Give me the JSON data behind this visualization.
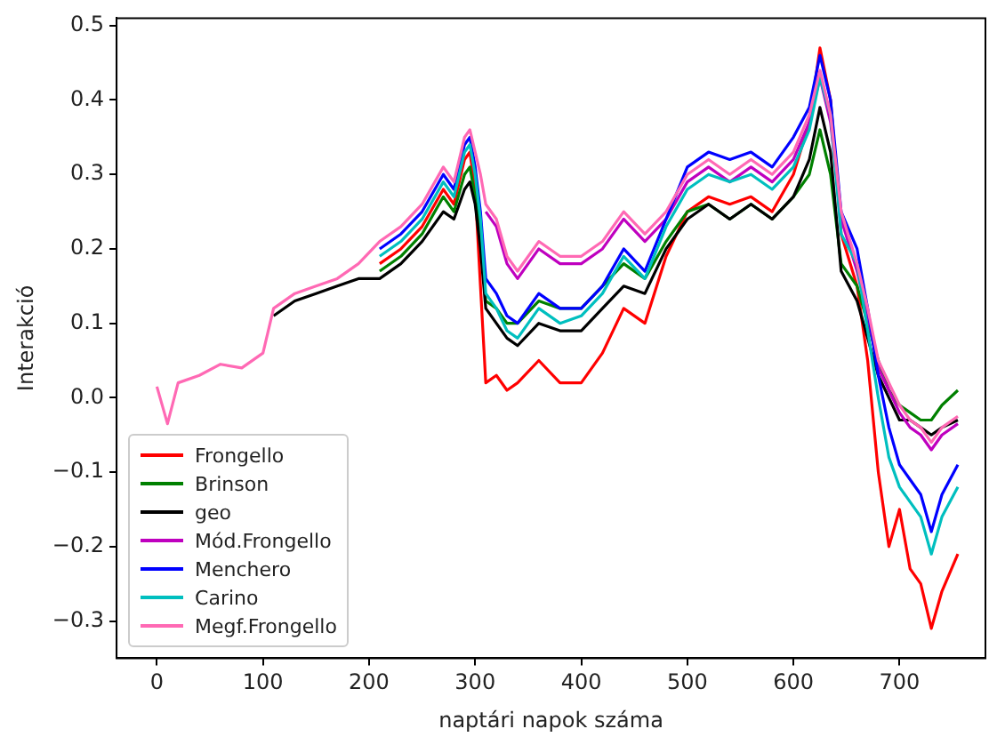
{
  "chart_data": {
    "type": "line",
    "xlabel": "naptári napok száma",
    "ylabel": "Interakció",
    "x": [
      0,
      10,
      20,
      40,
      60,
      80,
      100,
      110,
      130,
      150,
      170,
      190,
      210,
      230,
      250,
      270,
      280,
      290,
      295,
      300,
      305,
      310,
      320,
      330,
      340,
      360,
      380,
      400,
      420,
      440,
      460,
      480,
      500,
      520,
      540,
      560,
      580,
      600,
      615,
      625,
      635,
      645,
      660,
      670,
      680,
      690,
      700,
      710,
      720,
      730,
      740,
      755
    ],
    "xlim": [
      -38,
      781
    ],
    "xticks": [
      0,
      100,
      200,
      300,
      400,
      500,
      600,
      700
    ],
    "ylim": [
      -0.35,
      0.51
    ],
    "yticks": [
      {
        "value": -0.3,
        "label": "−0.3"
      },
      {
        "value": -0.2,
        "label": "−0.2"
      },
      {
        "value": -0.1,
        "label": "−0.1"
      },
      {
        "value": 0,
        "label": "0.0"
      },
      {
        "value": 0.1,
        "label": "0.1"
      },
      {
        "value": 0.2,
        "label": "0.2"
      },
      {
        "value": 0.3,
        "label": "0.3"
      },
      {
        "value": 0.4,
        "label": "0.4"
      },
      {
        "value": 0.5,
        "label": "0.5"
      }
    ],
    "grid": false,
    "legend": "lower left",
    "marker": "none",
    "line_style": "solid",
    "series": [
      {
        "name": "Frongello",
        "color": "#ff0000",
        "values": [
          null,
          null,
          null,
          null,
          null,
          null,
          null,
          null,
          null,
          null,
          null,
          null,
          0.18,
          0.2,
          0.23,
          0.28,
          0.26,
          0.32,
          0.33,
          0.28,
          0.15,
          0.02,
          0.03,
          0.01,
          0.02,
          0.05,
          0.02,
          0.02,
          0.06,
          0.12,
          0.1,
          0.19,
          0.25,
          0.27,
          0.26,
          0.27,
          0.25,
          0.3,
          0.37,
          0.47,
          0.4,
          0.22,
          0.15,
          0.05,
          -0.1,
          -0.2,
          -0.15,
          -0.23,
          -0.25,
          -0.31,
          -0.26,
          -0.21
        ]
      },
      {
        "name": "Brinson",
        "color": "#008000",
        "values": [
          null,
          null,
          null,
          null,
          null,
          null,
          null,
          null,
          null,
          null,
          null,
          null,
          0.17,
          0.19,
          0.22,
          0.27,
          0.25,
          0.3,
          0.31,
          0.27,
          0.22,
          0.13,
          0.12,
          0.1,
          0.1,
          0.13,
          0.12,
          0.12,
          0.15,
          0.18,
          0.16,
          0.21,
          0.25,
          0.26,
          0.24,
          0.26,
          0.24,
          0.27,
          0.3,
          0.36,
          0.3,
          0.18,
          0.15,
          0.1,
          0.05,
          0.01,
          -0.01,
          -0.02,
          -0.03,
          -0.03,
          -0.01,
          0.01
        ]
      },
      {
        "name": "geo",
        "color": "#000000",
        "values": [
          null,
          null,
          null,
          null,
          null,
          null,
          null,
          0.11,
          0.13,
          0.14,
          0.15,
          0.16,
          0.16,
          0.18,
          0.21,
          0.25,
          0.24,
          0.28,
          0.29,
          0.26,
          0.2,
          0.12,
          0.1,
          0.08,
          0.07,
          0.1,
          0.09,
          0.09,
          0.12,
          0.15,
          0.14,
          0.2,
          0.24,
          0.26,
          0.24,
          0.26,
          0.24,
          0.27,
          0.32,
          0.39,
          0.33,
          0.17,
          0.13,
          0.08,
          0.03,
          0.0,
          -0.03,
          -0.03,
          -0.04,
          -0.05,
          -0.04,
          -0.03
        ]
      },
      {
        "name": "Mód.Frongello",
        "color": "#bf00bf",
        "values": [
          null,
          null,
          null,
          null,
          null,
          null,
          null,
          null,
          null,
          null,
          null,
          null,
          null,
          null,
          null,
          null,
          null,
          null,
          null,
          null,
          null,
          0.25,
          0.23,
          0.18,
          0.16,
          0.2,
          0.18,
          0.18,
          0.2,
          0.24,
          0.21,
          0.24,
          0.29,
          0.31,
          0.29,
          0.31,
          0.29,
          0.32,
          0.37,
          0.43,
          0.37,
          0.24,
          0.17,
          0.11,
          0.04,
          0.01,
          -0.02,
          -0.04,
          -0.05,
          -0.07,
          -0.05,
          -0.035
        ]
      },
      {
        "name": "Menchero",
        "color": "#0000ff",
        "values": [
          null,
          null,
          null,
          null,
          null,
          null,
          null,
          null,
          null,
          null,
          null,
          null,
          0.2,
          0.22,
          0.25,
          0.3,
          0.28,
          0.34,
          0.35,
          0.31,
          0.25,
          0.16,
          0.14,
          0.11,
          0.1,
          0.14,
          0.12,
          0.12,
          0.15,
          0.2,
          0.17,
          0.24,
          0.31,
          0.33,
          0.32,
          0.33,
          0.31,
          0.35,
          0.39,
          0.46,
          0.4,
          0.25,
          0.2,
          0.12,
          0.03,
          -0.04,
          -0.09,
          -0.11,
          -0.13,
          -0.18,
          -0.13,
          -0.09
        ]
      },
      {
        "name": "Carino",
        "color": "#00bfbf",
        "values": [
          null,
          null,
          null,
          null,
          null,
          null,
          null,
          null,
          null,
          null,
          null,
          null,
          0.19,
          0.21,
          0.24,
          0.29,
          0.27,
          0.33,
          0.34,
          0.3,
          0.24,
          0.14,
          0.12,
          0.09,
          0.08,
          0.12,
          0.1,
          0.11,
          0.14,
          0.19,
          0.16,
          0.23,
          0.28,
          0.3,
          0.29,
          0.3,
          0.28,
          0.31,
          0.36,
          0.43,
          0.38,
          0.22,
          0.18,
          0.09,
          0.0,
          -0.08,
          -0.12,
          -0.14,
          -0.16,
          -0.21,
          -0.16,
          -0.12
        ]
      },
      {
        "name": "Megf.Frongello",
        "color": "#ff69b4",
        "values": [
          0.015,
          -0.035,
          0.02,
          0.03,
          0.045,
          0.04,
          0.06,
          0.12,
          0.14,
          0.15,
          0.16,
          0.18,
          0.21,
          0.23,
          0.26,
          0.31,
          0.29,
          0.35,
          0.36,
          0.33,
          0.3,
          0.26,
          0.24,
          0.19,
          0.17,
          0.21,
          0.19,
          0.19,
          0.21,
          0.25,
          0.22,
          0.25,
          0.3,
          0.32,
          0.3,
          0.32,
          0.3,
          0.33,
          0.38,
          0.44,
          0.38,
          0.25,
          0.18,
          0.12,
          0.05,
          0.02,
          -0.01,
          -0.03,
          -0.04,
          -0.06,
          -0.04,
          -0.025
        ]
      }
    ]
  }
}
